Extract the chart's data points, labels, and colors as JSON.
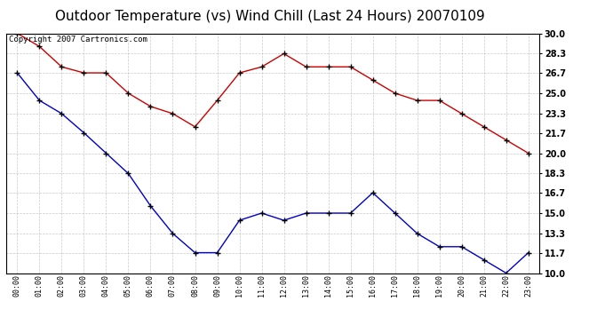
{
  "title": "Outdoor Temperature (vs) Wind Chill (Last 24 Hours) 20070109",
  "copyright": "Copyright 2007 Cartronics.com",
  "x_labels": [
    "00:00",
    "01:00",
    "02:00",
    "03:00",
    "04:00",
    "05:00",
    "06:00",
    "07:00",
    "08:00",
    "09:00",
    "10:00",
    "11:00",
    "12:00",
    "13:00",
    "14:00",
    "15:00",
    "16:00",
    "17:00",
    "18:00",
    "19:00",
    "20:00",
    "21:00",
    "22:00",
    "23:00"
  ],
  "temp_red": [
    30.0,
    28.9,
    27.2,
    26.7,
    26.7,
    25.0,
    23.9,
    23.3,
    22.2,
    24.4,
    26.7,
    27.2,
    28.3,
    27.2,
    27.2,
    27.2,
    26.1,
    25.0,
    24.4,
    24.4,
    23.3,
    22.2,
    21.1,
    20.0
  ],
  "wind_blue": [
    26.7,
    24.4,
    23.3,
    21.7,
    20.0,
    18.3,
    15.6,
    13.3,
    11.7,
    11.7,
    14.4,
    15.0,
    14.4,
    15.0,
    15.0,
    15.0,
    16.7,
    15.0,
    13.3,
    12.2,
    12.2,
    11.1,
    10.0,
    11.7
  ],
  "ylim": [
    10.0,
    30.0
  ],
  "yticks": [
    10.0,
    11.7,
    13.3,
    15.0,
    16.7,
    18.3,
    20.0,
    21.7,
    23.3,
    25.0,
    26.7,
    28.3,
    30.0
  ],
  "red_color": "#cc0000",
  "blue_color": "#0000cc",
  "bg_color": "#ffffff",
  "plot_bg_color": "#ffffff",
  "grid_color": "#bbbbbb",
  "title_fontsize": 11,
  "copyright_fontsize": 6.5
}
